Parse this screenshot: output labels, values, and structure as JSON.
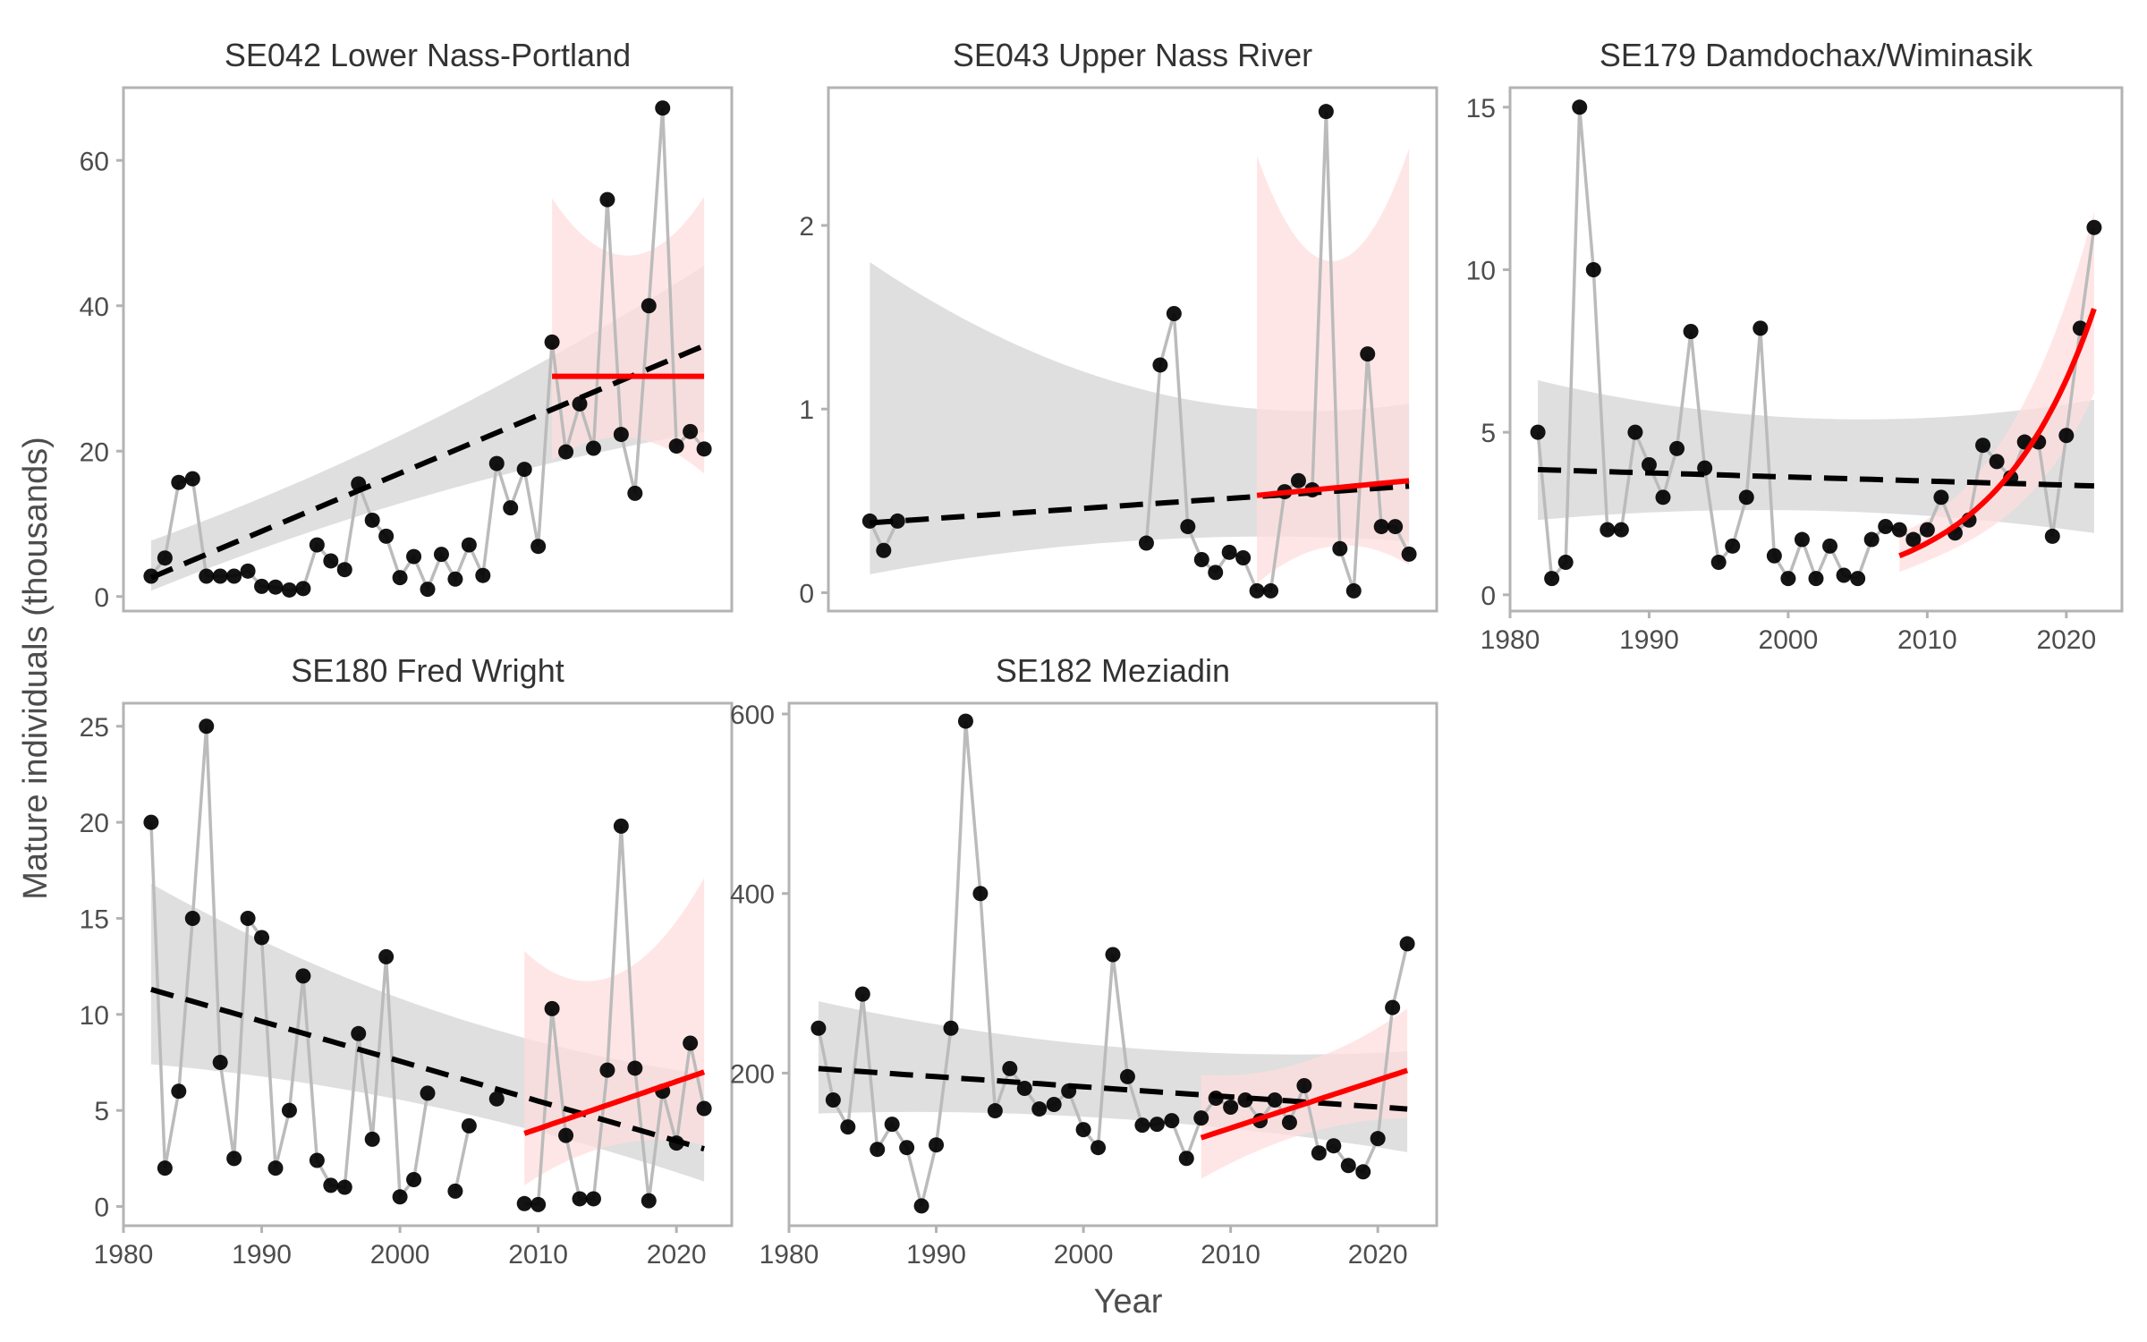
{
  "figure": {
    "ylabel": "Mature individuals (thousands)",
    "xlabel": "Year"
  },
  "colors": {
    "points": "#000000",
    "connector": "#bbbbbb",
    "long_trend": "#000000",
    "long_ribbon": "#d9d9d9",
    "recent_trend": "#ff0000",
    "recent_ribbon": "#ffdede",
    "panel_border": "#b3b3b3",
    "tick_text": "#4d4d4d",
    "title_text": "#333333"
  },
  "chart_data": [
    {
      "type": "line",
      "title": "SE042 Lower Nass-Portland",
      "xlim": [
        1980,
        2024
      ],
      "ylim": [
        -2,
        70
      ],
      "xticks": [
        1980,
        1990,
        2000,
        2010,
        2020
      ],
      "yticks": [
        0,
        20,
        40,
        60
      ],
      "show_xticks": false,
      "grid": false,
      "x": [
        1982,
        1983,
        1984,
        1985,
        1986,
        1987,
        1988,
        1989,
        1990,
        1991,
        1992,
        1993,
        1994,
        1995,
        1996,
        1997,
        1998,
        1999,
        2000,
        2001,
        2002,
        2003,
        2004,
        2005,
        2006,
        2007,
        2008,
        2009,
        2010,
        2011,
        2012,
        2013,
        2014,
        2015,
        2016,
        2017,
        2018,
        2019,
        2020,
        2021,
        2022
      ],
      "y": [
        2.8,
        5.3,
        15.7,
        16.2,
        2.8,
        2.8,
        2.8,
        3.5,
        1.4,
        1.3,
        0.9,
        1.1,
        7.1,
        4.9,
        3.7,
        15.5,
        10.5,
        8.3,
        2.6,
        5.5,
        1.0,
        5.8,
        2.4,
        7.1,
        2.9,
        18.3,
        12.2,
        17.5,
        6.9,
        35.0,
        19.9,
        26.5,
        20.4,
        54.6,
        22.3,
        14.2,
        40.0,
        67.2,
        20.7,
        22.7,
        20.3
      ],
      "long_trend": {
        "x0": 1982,
        "x1": 2022,
        "y0": 2.6,
        "y1": 34.5,
        "lo0": 0.8,
        "hi0": 7.7,
        "lo1": 22.6,
        "hi1": 45.5
      },
      "recent_trend": {
        "x0": 2011,
        "x1": 2022,
        "y0": 30.3,
        "y1": 30.3,
        "lo0": 18.7,
        "hi0": 54.8,
        "lo1": 16.9,
        "hi1": 55.0
      }
    },
    {
      "type": "line",
      "title": "SE043 Upper Nass River",
      "xlim": [
        1980,
        2024
      ],
      "ylim": [
        -0.1,
        2.75
      ],
      "xticks": [
        1980,
        1990,
        2000,
        2010,
        2020
      ],
      "yticks": [
        0,
        1,
        2
      ],
      "show_xticks": false,
      "grid": false,
      "x": [
        1983,
        1984,
        1985,
        2003,
        2004,
        2005,
        2006,
        2007,
        2008,
        2009,
        2010,
        2011,
        2012,
        2013,
        2014,
        2015,
        2016,
        2017,
        2018,
        2019,
        2020,
        2021,
        2022
      ],
      "y": [
        0.39,
        0.23,
        0.39,
        0.27,
        1.24,
        1.52,
        0.36,
        0.18,
        0.11,
        0.22,
        0.19,
        0.01,
        0.01,
        0.55,
        0.61,
        0.56,
        2.62,
        0.24,
        0.01,
        1.3,
        0.36,
        0.36,
        0.21
      ],
      "segment_breaks": [
        2003
      ],
      "long_trend": {
        "x0": 1983,
        "x1": 2022,
        "y0": 0.38,
        "y1": 0.58,
        "lo0": 0.1,
        "hi0": 1.8,
        "lo1": 0.28,
        "hi1": 1.03
      },
      "recent_trend": {
        "x0": 2011,
        "x1": 2022,
        "y0": 0.53,
        "y1": 0.61,
        "lo0": 0.05,
        "hi0": 2.38,
        "lo1": 0.15,
        "hi1": 2.42
      }
    },
    {
      "type": "line",
      "title": "SE179 Damdochax/Wiminasik",
      "xlim": [
        1980,
        2024
      ],
      "ylim": [
        -0.5,
        15.6
      ],
      "xticks": [
        1980,
        1990,
        2000,
        2010,
        2020
      ],
      "yticks": [
        0,
        5,
        10,
        15
      ],
      "show_xticks": true,
      "grid": false,
      "x": [
        1982,
        1983,
        1984,
        1985,
        1986,
        1987,
        1988,
        1989,
        1990,
        1991,
        1992,
        1993,
        1994,
        1995,
        1996,
        1997,
        1998,
        1999,
        2000,
        2001,
        2002,
        2003,
        2004,
        2005,
        2006,
        2007,
        2008,
        2009,
        2010,
        2011,
        2012,
        2013,
        2014,
        2015,
        2016,
        2017,
        2018,
        2019,
        2020,
        2021,
        2022
      ],
      "y": [
        5.0,
        0.5,
        1.0,
        15.0,
        10.0,
        2.0,
        2.0,
        5.0,
        4.0,
        3.0,
        4.5,
        8.1,
        3.9,
        1.0,
        1.5,
        3.0,
        8.2,
        1.2,
        0.5,
        1.7,
        0.5,
        1.5,
        0.6,
        0.5,
        1.7,
        2.1,
        2.0,
        1.7,
        2.0,
        3.0,
        1.9,
        2.3,
        4.6,
        4.1,
        3.6,
        4.7,
        4.7,
        1.8,
        4.9,
        8.2,
        11.3
      ],
      "long_trend": {
        "x0": 1982,
        "x1": 2022,
        "y0": 3.85,
        "y1": 3.35,
        "lo0": 2.3,
        "hi0": 6.6,
        "lo1": 1.9,
        "hi1": 6.0
      },
      "recent_trend": {
        "x0": 2008,
        "x1": 2022,
        "y0": 1.2,
        "y1": 8.8,
        "lo0": 0.7,
        "hi0": 1.9,
        "lo1": 6.2,
        "hi1": 11.8,
        "curve": "exp"
      }
    },
    {
      "type": "line",
      "title": "SE180 Fred Wright",
      "xlim": [
        1980,
        2024
      ],
      "ylim": [
        -1,
        26.2
      ],
      "xticks": [
        1980,
        1990,
        2000,
        2010,
        2020
      ],
      "yticks": [
        0,
        5,
        10,
        15,
        20,
        25
      ],
      "show_xticks": true,
      "grid": false,
      "x": [
        1982,
        1983,
        1984,
        1985,
        1986,
        1987,
        1988,
        1989,
        1990,
        1991,
        1992,
        1993,
        1994,
        1995,
        1996,
        1997,
        1998,
        1999,
        2000,
        2001,
        2002,
        2004,
        2005,
        2007,
        2009,
        2010,
        2011,
        2012,
        2013,
        2014,
        2015,
        2016,
        2017,
        2018,
        2019,
        2020,
        2021,
        2022
      ],
      "y": [
        20.0,
        2.0,
        6.0,
        15.0,
        25.0,
        7.5,
        2.5,
        15.0,
        14.0,
        2.0,
        5.0,
        12.0,
        2.4,
        1.1,
        1.0,
        9.0,
        3.5,
        13.0,
        0.5,
        1.4,
        5.9,
        0.8,
        4.2,
        5.6,
        0.15,
        0.1,
        10.3,
        3.7,
        0.4,
        0.4,
        7.1,
        19.8,
        7.2,
        0.3,
        6.0,
        3.3,
        8.5,
        5.1
      ],
      "segment_breaks": [
        2004,
        2007,
        2009
      ],
      "long_trend": {
        "x0": 1982,
        "x1": 2022,
        "y0": 11.3,
        "y1": 3.0,
        "lo0": 7.4,
        "hi0": 16.8,
        "lo1": 1.3,
        "hi1": 6.9
      },
      "recent_trend": {
        "x0": 2009,
        "x1": 2022,
        "y0": 3.8,
        "y1": 7.0,
        "lo0": 1.1,
        "hi0": 13.3,
        "lo1": 3.2,
        "hi1": 17.1
      }
    },
    {
      "type": "line",
      "title": "SE182 Meziadin",
      "xlim": [
        1980,
        2024
      ],
      "ylim": [
        30,
        612
      ],
      "xticks": [
        1980,
        1990,
        2000,
        2010,
        2020
      ],
      "yticks": [
        200,
        400,
        600
      ],
      "show_xticks": true,
      "grid": false,
      "x": [
        1982,
        1983,
        1984,
        1985,
        1986,
        1987,
        1988,
        1989,
        1990,
        1991,
        1992,
        1993,
        1994,
        1995,
        1996,
        1997,
        1998,
        1999,
        2000,
        2001,
        2002,
        2003,
        2004,
        2005,
        2006,
        2007,
        2008,
        2009,
        2010,
        2011,
        2012,
        2013,
        2014,
        2015,
        2016,
        2017,
        2018,
        2019,
        2020,
        2021,
        2022
      ],
      "y": [
        250,
        170,
        140,
        288,
        115,
        143,
        117,
        52,
        120,
        250,
        592,
        400,
        158,
        205,
        183,
        160,
        165,
        180,
        137,
        117,
        332,
        196,
        142,
        143,
        147,
        105,
        150,
        172,
        162,
        170,
        147,
        170,
        145,
        186,
        111,
        119,
        97,
        90,
        127,
        273,
        344
      ],
      "long_trend": {
        "x0": 1982,
        "x1": 2022,
        "y0": 205,
        "y1": 160,
        "lo0": 155,
        "hi0": 280,
        "lo1": 112,
        "hi1": 224
      },
      "recent_trend": {
        "x0": 2008,
        "x1": 2022,
        "y0": 128,
        "y1": 203,
        "lo0": 82,
        "hi0": 198,
        "lo1": 150,
        "hi1": 272
      }
    }
  ]
}
